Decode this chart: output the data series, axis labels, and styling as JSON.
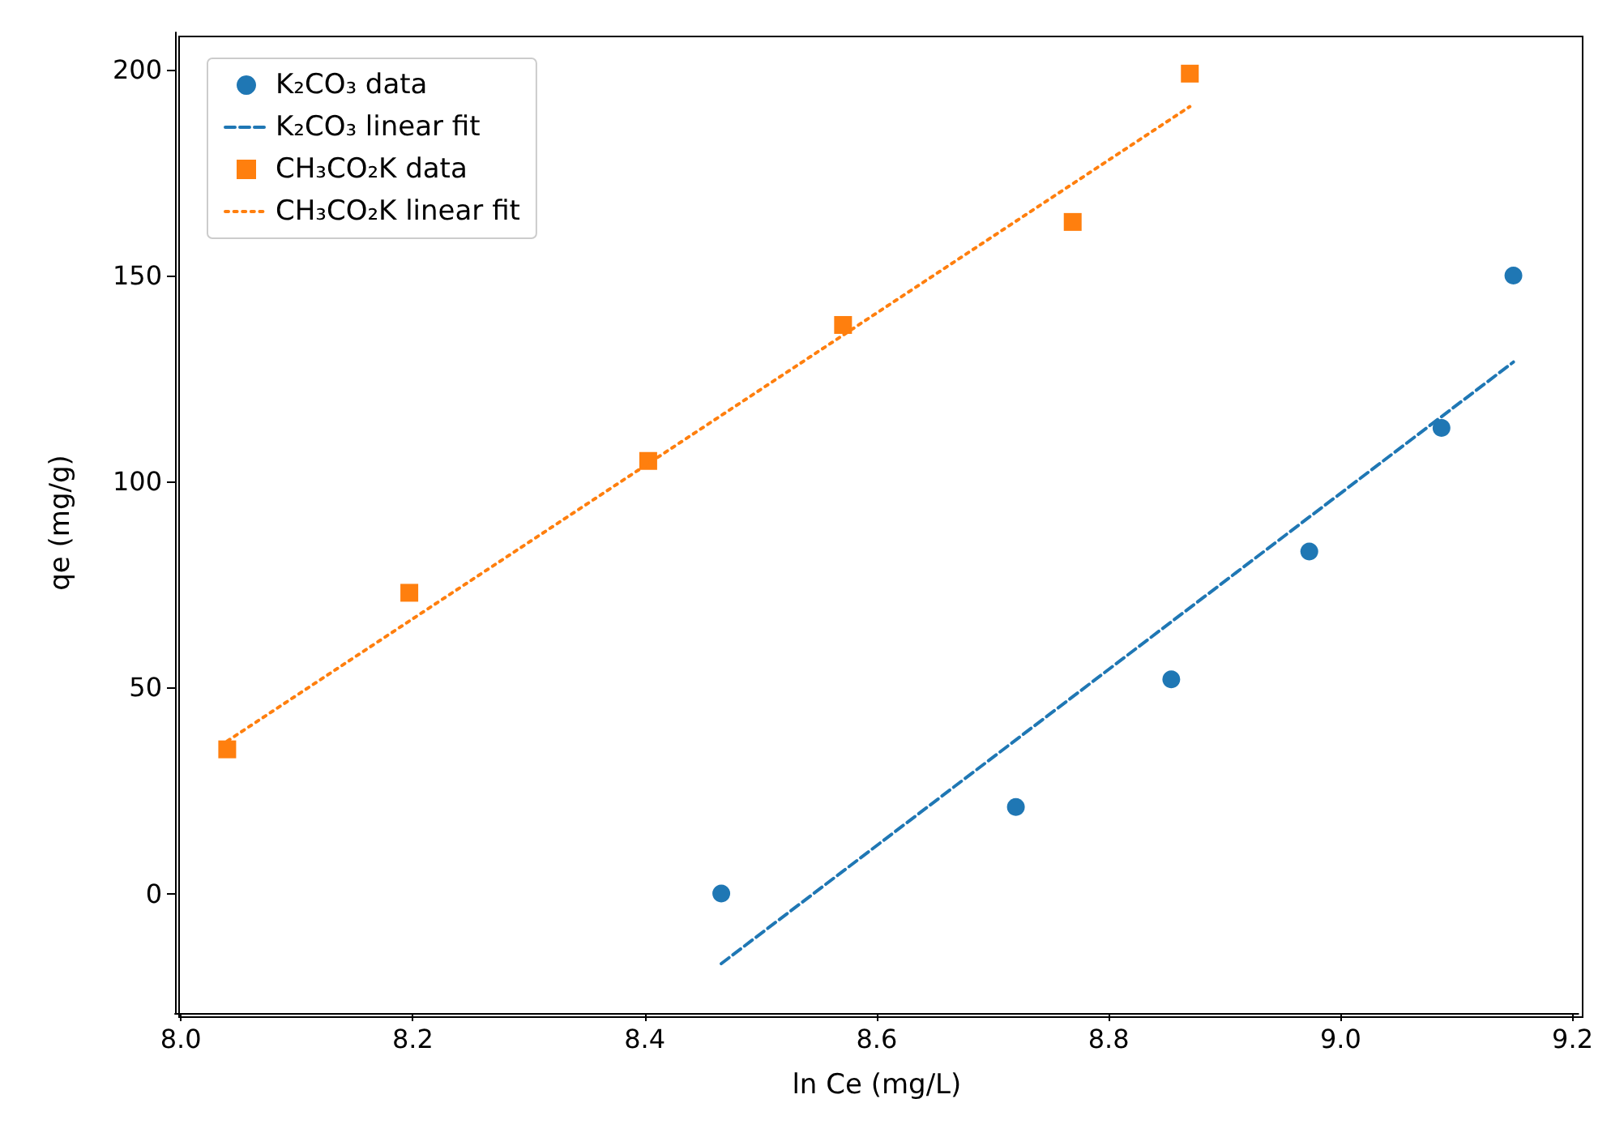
{
  "chart_data": {
    "type": "scatter",
    "xlabel": "ln Ce (mg/L)",
    "ylabel": "qe (mg/g)",
    "xlim": [
      7.995,
      9.205
    ],
    "ylim": [
      -29,
      209
    ],
    "xticks": [
      {
        "value": 8.0,
        "label": "8.0"
      },
      {
        "value": 8.2,
        "label": "8.2"
      },
      {
        "value": 8.4,
        "label": "8.4"
      },
      {
        "value": 8.6,
        "label": "8.6"
      },
      {
        "value": 8.8,
        "label": "8.8"
      },
      {
        "value": 9.0,
        "label": "9.0"
      },
      {
        "value": 9.2,
        "label": "9.2"
      }
    ],
    "yticks": [
      0,
      50,
      100,
      150,
      200
    ],
    "grid": false,
    "legend": "top left",
    "series": [
      {
        "name": "K₂CO₃ data",
        "type": "scatter",
        "marker": "circle",
        "color": "#1f77b4",
        "x": [
          8.466,
          8.72,
          8.854,
          8.973,
          9.087,
          9.149
        ],
        "values": [
          0,
          21,
          52,
          83,
          113,
          150
        ]
      },
      {
        "name": "K₂CO₃ linear fit",
        "type": "line",
        "marker": "none",
        "line_style": "dashed",
        "color": "#1f77b4",
        "x": [
          8.466,
          9.149
        ],
        "values": [
          -17,
          129
        ]
      },
      {
        "name": "CH₃CO₂K data",
        "type": "scatter",
        "marker": "square",
        "color": "#ff7f0e",
        "x": [
          8.04,
          8.197,
          8.403,
          8.571,
          8.769,
          8.87
        ],
        "values": [
          35,
          73,
          105,
          138,
          163,
          199
        ]
      },
      {
        "name": "CH₃CO₂K linear fit",
        "type": "line",
        "marker": "none",
        "line_style": "dotted",
        "color": "#ff7f0e",
        "x": [
          8.04,
          8.87
        ],
        "values": [
          37,
          191
        ]
      }
    ]
  }
}
